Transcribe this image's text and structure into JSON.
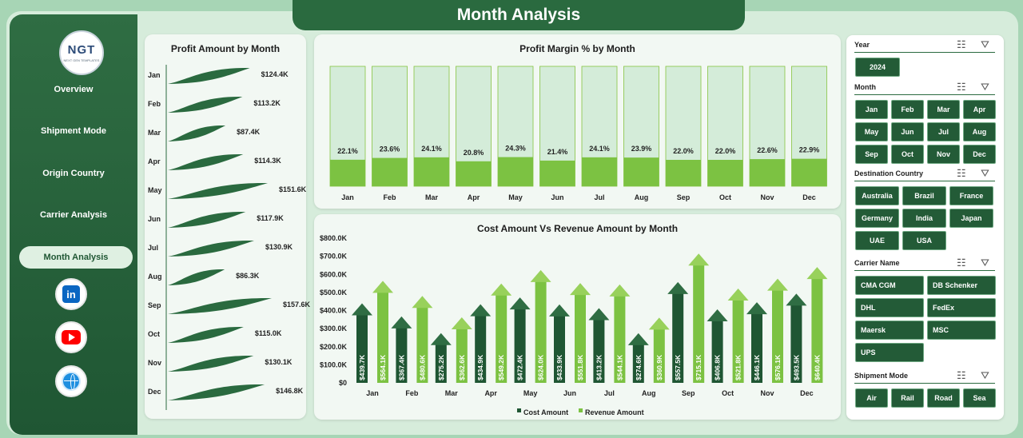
{
  "page_title": "Month Analysis",
  "logo": {
    "text": "NGT",
    "subtext": "NEXT GEN TEMPLATES"
  },
  "nav": {
    "items": [
      "Overview",
      "Shipment Mode",
      "Origin Country",
      "Carrier  Analysis"
    ],
    "active": "Month Analysis"
  },
  "social": [
    "linkedin-icon",
    "youtube-icon",
    "globe-icon"
  ],
  "colors": {
    "dark_green": "#1f5633",
    "green": "#2a6a3f",
    "light_green": "#7cc242",
    "revenue": "#86c440",
    "cost": "#1f5633"
  },
  "profit_chart": {
    "title": "Profit Amount by Month",
    "chart_data": {
      "type": "bar",
      "categories": [
        "Jan",
        "Feb",
        "Mar",
        "Apr",
        "May",
        "Jun",
        "Jul",
        "Aug",
        "Sep",
        "Oct",
        "Nov",
        "Dec"
      ],
      "values": [
        124.4,
        113.2,
        87.4,
        114.3,
        151.6,
        117.9,
        130.9,
        86.3,
        157.6,
        115.0,
        130.1,
        146.8
      ],
      "labels": [
        "$124.4K",
        "$113.2K",
        "$87.4K",
        "$114.3K",
        "$151.6K",
        "$117.9K",
        "$130.9K",
        "$86.3K",
        "$157.6K",
        "$115.0K",
        "$130.1K",
        "$146.8K"
      ],
      "orientation": "horizontal"
    }
  },
  "margin_chart": {
    "title": "Profit Margin % by Month",
    "chart_data": {
      "type": "bar",
      "categories": [
        "Jan",
        "Feb",
        "Mar",
        "Apr",
        "May",
        "Jun",
        "Jul",
        "Aug",
        "Sep",
        "Oct",
        "Nov",
        "Dec"
      ],
      "values": [
        22.1,
        23.6,
        24.1,
        20.8,
        24.3,
        21.4,
        24.1,
        23.9,
        22.0,
        22.0,
        22.6,
        22.9
      ],
      "labels": [
        "22.1%",
        "23.6%",
        "24.1%",
        "20.8%",
        "24.3%",
        "21.4%",
        "24.1%",
        "23.9%",
        "22.0%",
        "22.0%",
        "22.6%",
        "22.9%"
      ],
      "ylim": [
        0,
        100
      ]
    }
  },
  "cost_revenue_chart": {
    "title": "Cost Amount Vs Revenue Amount by Month",
    "chart_data": {
      "type": "bar",
      "categories": [
        "Jan",
        "Feb",
        "Mar",
        "Apr",
        "May",
        "Jun",
        "Jul",
        "Aug",
        "Sep",
        "Oct",
        "Nov",
        "Dec"
      ],
      "series": [
        {
          "name": "Cost Amount",
          "values": [
            439.7,
            367.4,
            275.2,
            434.9,
            472.4,
            433.9,
            413.2,
            274.6,
            557.5,
            406.8,
            446.1,
            493.5
          ],
          "labels": [
            "$439.7K",
            "$367.4K",
            "$275.2K",
            "$434.9K",
            "$472.4K",
            "$433.9K",
            "$413.2K",
            "$274.6K",
            "$557.5K",
            "$406.8K",
            "$446.1K",
            "$493.5K"
          ]
        },
        {
          "name": "Revenue Amount",
          "values": [
            564.1,
            480.6,
            362.6,
            549.2,
            624.0,
            551.8,
            544.1,
            360.9,
            715.1,
            521.8,
            576.1,
            640.4
          ],
          "labels": [
            "$564.1K",
            "$480.6K",
            "$362.6K",
            "$549.2K",
            "$624.0K",
            "$551.8K",
            "$544.1K",
            "$360.9K",
            "$715.1K",
            "$521.8K",
            "$576.1K",
            "$640.4K"
          ]
        }
      ],
      "yticks": [
        "$0",
        "$100.0K",
        "$200.0K",
        "$300.0K",
        "$400.0K",
        "$500.0K",
        "$600.0K",
        "$700.0K",
        "$800.0K"
      ],
      "ylim": [
        0,
        800
      ],
      "legend": "bottom"
    }
  },
  "slicers": {
    "year": {
      "title": "Year",
      "items": [
        "2024"
      ]
    },
    "month": {
      "title": "Month",
      "items": [
        "Jan",
        "Feb",
        "Mar",
        "Apr",
        "May",
        "Jun",
        "Jul",
        "Aug",
        "Sep",
        "Oct",
        "Nov",
        "Dec"
      ]
    },
    "destination": {
      "title": "Destination Country",
      "items": [
        "Australia",
        "Brazil",
        "France",
        "Germany",
        "India",
        "Japan",
        "UAE",
        "USA"
      ]
    },
    "carrier": {
      "title": "Carrier Name",
      "items": [
        "CMA CGM",
        "DB Schenker",
        "DHL",
        "FedEx",
        "Maersk",
        "MSC",
        "UPS"
      ]
    },
    "shipment": {
      "title": "Shipment Mode",
      "items": [
        "Air",
        "Rail",
        "Road",
        "Sea"
      ]
    }
  }
}
